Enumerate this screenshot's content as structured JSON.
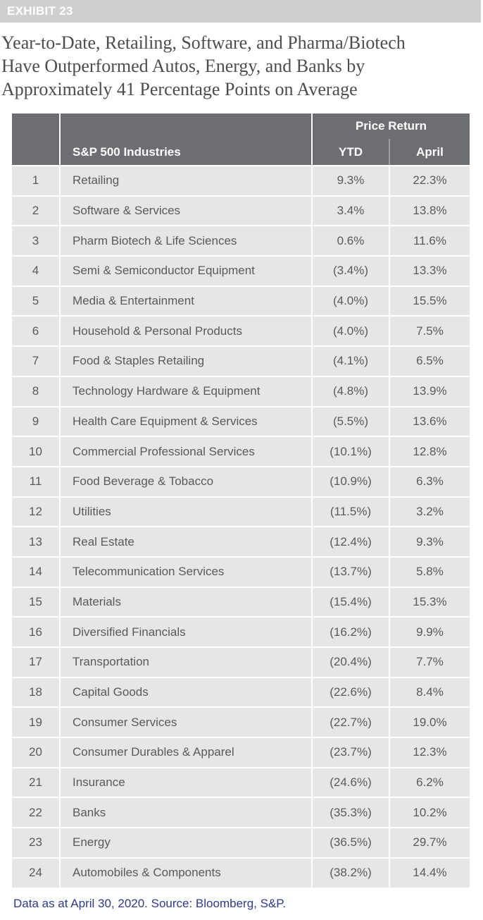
{
  "exhibit": "EXHIBIT 23",
  "title_lines": [
    "Year-to-Date, Retailing, Software, and Pharma/Biotech",
    "Have Outperformed Autos, Energy, and Banks by",
    "Approximately 41 Percentage Points on Average"
  ],
  "footnote": "Data as at April 30, 2020. Source: Bloomberg, S&P.",
  "colors": {
    "header": "#6d6e71",
    "row": "#e6e6e7",
    "negative": "#dc7a7a",
    "footnote": "#2f3a8c"
  },
  "chart_data": {
    "type": "table",
    "group_header": "Price Return",
    "columns": [
      "",
      "S&P 500 Industries",
      "YTD",
      "April"
    ],
    "rows": [
      [
        "1",
        "Retailing",
        "9.3%",
        "22.3%"
      ],
      [
        "2",
        "Software & Services",
        "3.4%",
        "13.8%"
      ],
      [
        "3",
        "Pharm Biotech & Life Sciences",
        "0.6%",
        "11.6%"
      ],
      [
        "4",
        "Semi & Semiconductor Equipment",
        "(3.4%)",
        "13.3%"
      ],
      [
        "5",
        "Media & Entertainment",
        "(4.0%)",
        "15.5%"
      ],
      [
        "6",
        "Household & Personal Products",
        "(4.0%)",
        "7.5%"
      ],
      [
        "7",
        "Food & Staples Retailing",
        "(4.1%)",
        "6.5%"
      ],
      [
        "8",
        "Technology Hardware & Equipment",
        "(4.8%)",
        "13.9%"
      ],
      [
        "9",
        "Health Care Equipment & Services",
        "(5.5%)",
        "13.6%"
      ],
      [
        "10",
        "Commercial Professional Services",
        "(10.1%)",
        "12.8%"
      ],
      [
        "11",
        "Food Beverage & Tobacco",
        "(10.9%)",
        "6.3%"
      ],
      [
        "12",
        "Utilities",
        "(11.5%)",
        "3.2%"
      ],
      [
        "13",
        "Real Estate",
        "(12.4%)",
        "9.3%"
      ],
      [
        "14",
        "Telecommunication Services",
        "(13.7%)",
        "5.8%"
      ],
      [
        "15",
        "Materials",
        "(15.4%)",
        "15.3%"
      ],
      [
        "16",
        "Diversified Financials",
        "(16.2%)",
        "9.9%"
      ],
      [
        "17",
        "Transportation",
        "(20.4%)",
        "7.7%"
      ],
      [
        "18",
        "Capital Goods",
        "(22.6%)",
        "8.4%"
      ],
      [
        "19",
        "Consumer Services",
        "(22.7%)",
        "19.0%"
      ],
      [
        "20",
        "Consumer Durables & Apparel",
        "(23.7%)",
        "12.3%"
      ],
      [
        "21",
        "Insurance",
        "(24.6%)",
        "6.2%"
      ],
      [
        "22",
        "Banks",
        "(35.3%)",
        "10.2%"
      ],
      [
        "23",
        "Energy",
        "(36.5%)",
        "29.7%"
      ],
      [
        "24",
        "Automobiles & Components",
        "(38.2%)",
        "14.4%"
      ]
    ]
  }
}
